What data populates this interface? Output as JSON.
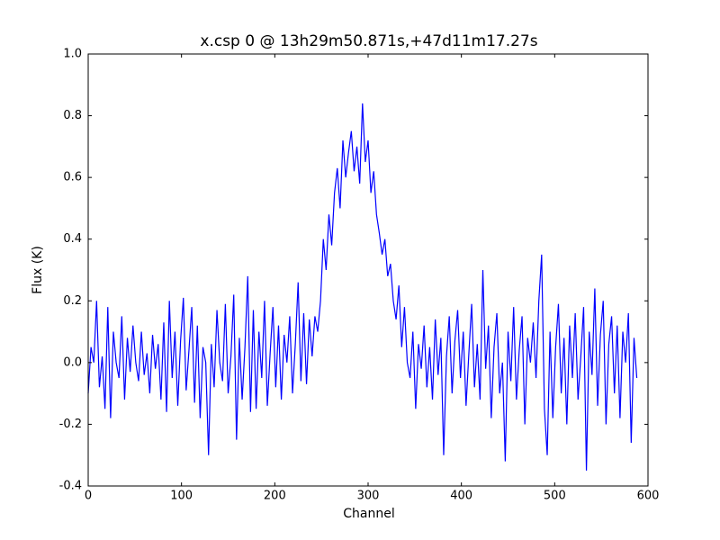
{
  "chart_data": {
    "type": "line",
    "title": "x.csp 0 @ 13h29m50.871s,+47d11m17.27s",
    "xlabel": "Channel",
    "ylabel": "Flux (K)",
    "color": "#0000ff",
    "xlim": [
      0,
      600
    ],
    "ylim": [
      -0.4,
      1.0
    ],
    "xticks": [
      0,
      100,
      200,
      300,
      400,
      500,
      600
    ],
    "yticks": [
      -0.4,
      -0.2,
      {
        "value": 0.0,
        "label": "0.0"
      },
      0.2,
      0.4,
      0.6,
      0.8,
      {
        "value": 1.0,
        "label": "1.0"
      }
    ],
    "x": [
      0,
      3,
      6,
      9,
      12,
      15,
      18,
      21,
      24,
      27,
      30,
      33,
      36,
      39,
      42,
      45,
      48,
      51,
      54,
      57,
      60,
      63,
      66,
      69,
      72,
      75,
      78,
      81,
      84,
      87,
      90,
      93,
      96,
      99,
      102,
      105,
      108,
      111,
      114,
      117,
      120,
      123,
      126,
      129,
      132,
      135,
      138,
      141,
      144,
      147,
      150,
      153,
      156,
      159,
      162,
      165,
      168,
      171,
      174,
      177,
      180,
      183,
      186,
      189,
      192,
      195,
      198,
      201,
      204,
      207,
      210,
      213,
      216,
      219,
      222,
      225,
      228,
      231,
      234,
      237,
      240,
      243,
      246,
      249,
      252,
      255,
      258,
      261,
      264,
      267,
      270,
      273,
      276,
      279,
      282,
      285,
      288,
      291,
      294,
      297,
      300,
      303,
      306,
      309,
      312,
      315,
      318,
      321,
      324,
      327,
      330,
      333,
      336,
      339,
      342,
      345,
      348,
      351,
      354,
      357,
      360,
      363,
      366,
      369,
      372,
      375,
      378,
      381,
      384,
      387,
      390,
      393,
      396,
      399,
      402,
      405,
      408,
      411,
      414,
      417,
      420,
      423,
      426,
      429,
      432,
      435,
      438,
      441,
      444,
      447,
      450,
      453,
      456,
      459,
      462,
      465,
      468,
      471,
      474,
      477,
      480,
      483,
      486,
      489,
      492,
      495,
      498,
      501,
      504,
      507,
      510,
      513,
      516,
      519,
      522,
      525,
      528,
      531,
      534,
      537,
      540,
      543,
      546,
      549,
      552,
      555,
      558,
      561,
      564,
      567,
      570,
      573,
      576,
      579,
      582,
      585,
      588
    ],
    "values": [
      -0.1,
      0.05,
      0.0,
      0.2,
      -0.08,
      0.02,
      -0.15,
      0.18,
      -0.18,
      0.1,
      0.0,
      -0.05,
      0.15,
      -0.12,
      0.08,
      -0.03,
      0.12,
      0.0,
      -0.06,
      0.1,
      -0.04,
      0.03,
      -0.1,
      0.09,
      -0.02,
      0.06,
      -0.12,
      0.13,
      -0.16,
      0.2,
      -0.05,
      0.1,
      -0.14,
      0.07,
      0.21,
      -0.09,
      0.04,
      0.18,
      -0.13,
      0.12,
      -0.18,
      0.05,
      0.0,
      -0.3,
      0.06,
      -0.08,
      0.17,
      0.0,
      -0.06,
      0.19,
      -0.1,
      0.02,
      0.22,
      -0.25,
      0.08,
      -0.12,
      0.05,
      0.28,
      -0.16,
      0.17,
      -0.15,
      0.1,
      -0.05,
      0.2,
      -0.14,
      0.03,
      0.18,
      -0.08,
      0.12,
      -0.12,
      0.09,
      0.0,
      0.15,
      -0.1,
      0.06,
      0.26,
      -0.06,
      0.16,
      -0.07,
      0.14,
      0.02,
      0.15,
      0.1,
      0.2,
      0.4,
      0.3,
      0.48,
      0.38,
      0.55,
      0.63,
      0.5,
      0.72,
      0.6,
      0.68,
      0.75,
      0.62,
      0.7,
      0.58,
      0.84,
      0.65,
      0.72,
      0.55,
      0.62,
      0.48,
      0.42,
      0.35,
      0.4,
      0.28,
      0.32,
      0.2,
      0.14,
      0.25,
      0.05,
      0.18,
      0.0,
      -0.05,
      0.1,
      -0.15,
      0.06,
      -0.02,
      0.12,
      -0.08,
      0.05,
      -0.12,
      0.14,
      -0.04,
      0.08,
      -0.3,
      0.02,
      0.15,
      -0.1,
      0.07,
      0.17,
      -0.05,
      0.1,
      -0.14,
      0.03,
      0.19,
      -0.08,
      0.06,
      -0.12,
      0.3,
      -0.02,
      0.12,
      -0.18,
      0.05,
      0.16,
      -0.1,
      0.0,
      -0.32,
      0.1,
      -0.06,
      0.18,
      -0.12,
      0.04,
      0.15,
      -0.2,
      0.08,
      0.0,
      0.13,
      -0.05,
      0.2,
      0.35,
      -0.15,
      -0.3,
      0.1,
      -0.18,
      0.05,
      0.19,
      -0.1,
      0.08,
      -0.2,
      0.12,
      -0.05,
      0.16,
      -0.12,
      0.02,
      0.18,
      -0.35,
      0.1,
      -0.04,
      0.24,
      -0.14,
      0.09,
      0.2,
      -0.2,
      0.06,
      0.15,
      -0.1,
      0.12,
      -0.18,
      0.1,
      0.0,
      0.16,
      -0.26,
      0.08,
      -0.05
    ]
  }
}
